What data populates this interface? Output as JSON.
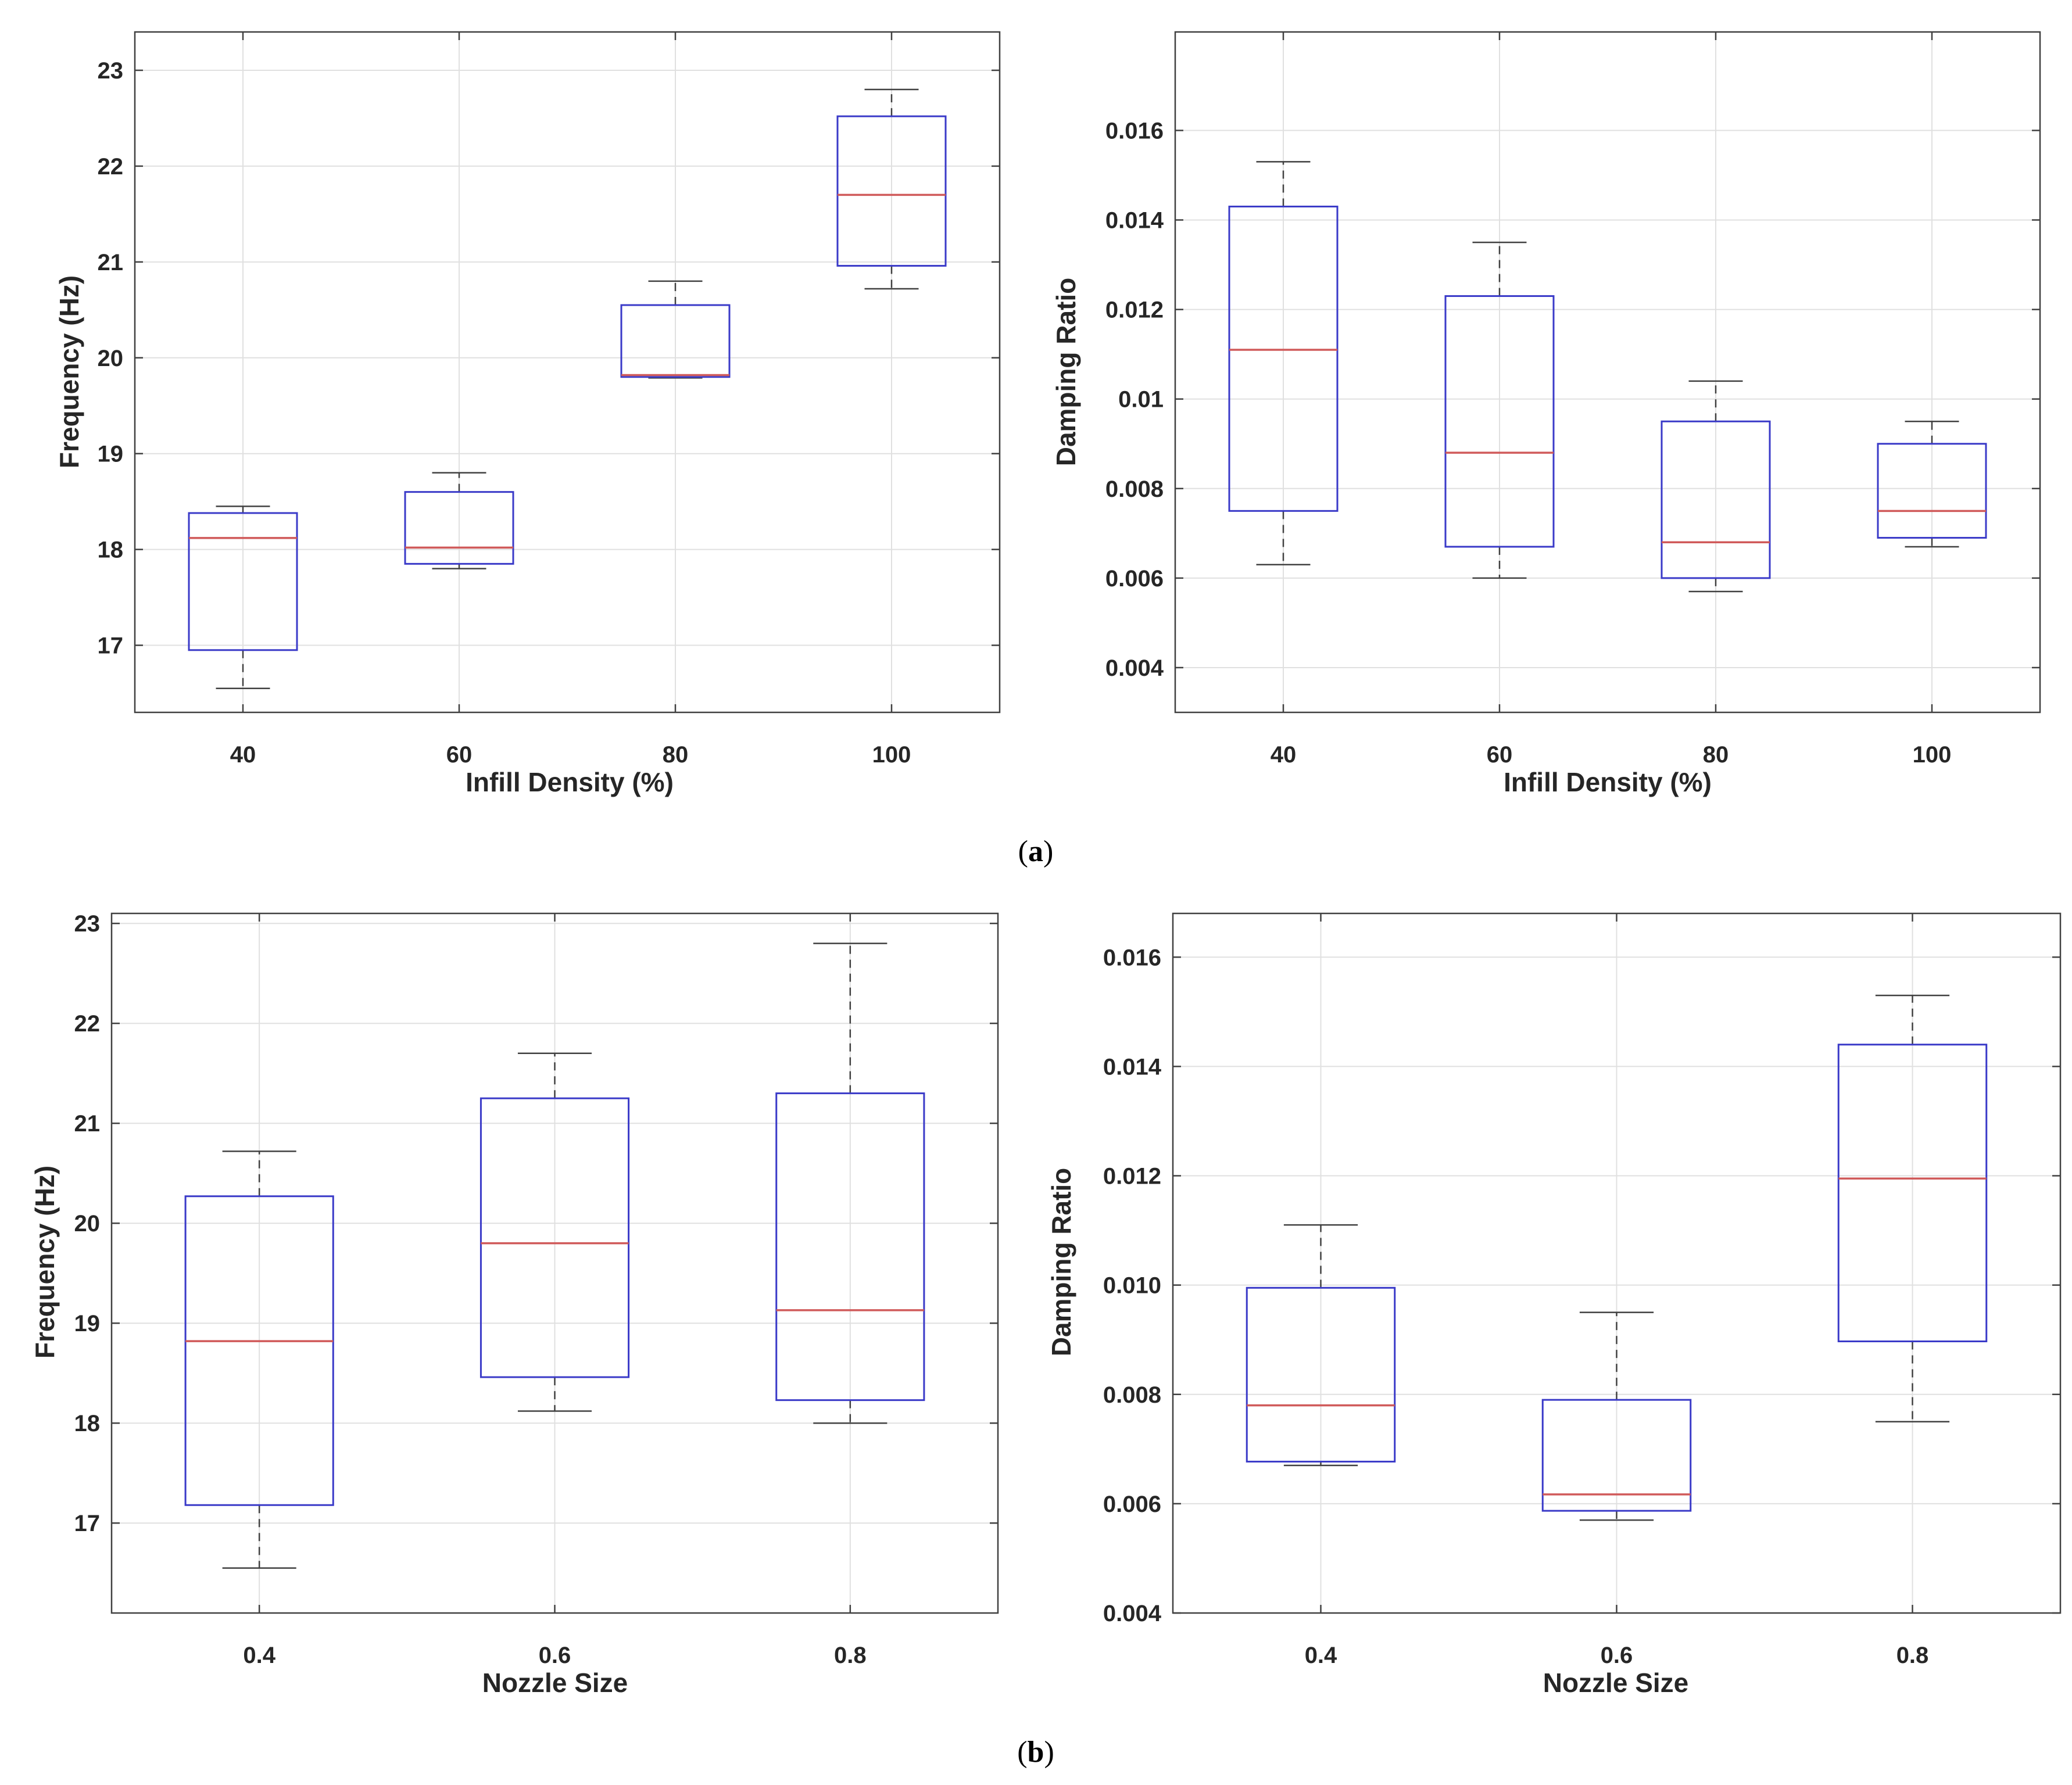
{
  "captions": {
    "a_open": "(",
    "a_letter": "a",
    "a_close": ")",
    "b_open": "(",
    "b_letter": "b",
    "b_close": ")"
  },
  "colors": {
    "box": "#3a3ac8",
    "median": "#d05a5a",
    "whisker": "#404040",
    "grid": "#e0e0e0",
    "axes": "#404040"
  },
  "chart_data": [
    {
      "type": "boxplot",
      "xlabel": "Infill Density (%)",
      "ylabel": "Frequency (Hz)",
      "categories": [
        "40",
        "60",
        "80",
        "100"
      ],
      "ylim": [
        16.3,
        23.4
      ],
      "yticks": [
        17,
        18,
        19,
        20,
        21,
        22,
        23
      ],
      "ytick_labels": [
        "17",
        "18",
        "19",
        "20",
        "21",
        "22",
        "23"
      ],
      "grid": true,
      "boxes": [
        {
          "category": "40",
          "min": 16.55,
          "q1": 16.95,
          "median": 18.12,
          "q3": 18.38,
          "max": 18.45
        },
        {
          "category": "60",
          "min": 17.8,
          "q1": 17.85,
          "median": 18.02,
          "q3": 18.6,
          "max": 18.8
        },
        {
          "category": "80",
          "min": 19.79,
          "q1": 19.8,
          "median": 19.82,
          "q3": 20.55,
          "max": 20.8
        },
        {
          "category": "100",
          "min": 20.72,
          "q1": 20.96,
          "median": 21.7,
          "q3": 22.52,
          "max": 22.8
        }
      ]
    },
    {
      "type": "boxplot",
      "xlabel": "Infill Density (%)",
      "ylabel": "Damping Ratio",
      "categories": [
        "40",
        "60",
        "80",
        "100"
      ],
      "ylim": [
        0.003,
        0.0182
      ],
      "yticks": [
        0.004,
        0.006,
        0.008,
        0.01,
        0.012,
        0.014,
        0.016
      ],
      "ytick_labels": [
        "0.004",
        "0.006",
        "0.008",
        "0.01",
        "0.012",
        "0.014",
        "0.016"
      ],
      "grid": true,
      "boxes": [
        {
          "category": "40",
          "min": 0.0063,
          "q1": 0.0075,
          "median": 0.0111,
          "q3": 0.0143,
          "max": 0.0153
        },
        {
          "category": "60",
          "min": 0.006,
          "q1": 0.0067,
          "median": 0.0088,
          "q3": 0.0123,
          "max": 0.0135
        },
        {
          "category": "80",
          "min": 0.0057,
          "q1": 0.006,
          "median": 0.0068,
          "q3": 0.0095,
          "max": 0.0104
        },
        {
          "category": "100",
          "min": 0.0067,
          "q1": 0.0069,
          "median": 0.0075,
          "q3": 0.009,
          "max": 0.0095
        }
      ]
    },
    {
      "type": "boxplot",
      "xlabel": "Nozzle Size",
      "ylabel": "Frequency (Hz)",
      "categories": [
        "0.4",
        "0.6",
        "0.8"
      ],
      "ylim": [
        16.1,
        23.1
      ],
      "yticks": [
        17,
        18,
        19,
        20,
        21,
        22,
        23
      ],
      "ytick_labels": [
        "17",
        "18",
        "19",
        "20",
        "21",
        "22",
        "23"
      ],
      "grid": true,
      "boxes": [
        {
          "category": "0.4",
          "min": 16.55,
          "q1": 17.18,
          "median": 18.82,
          "q3": 20.27,
          "max": 20.72
        },
        {
          "category": "0.6",
          "min": 18.12,
          "q1": 18.46,
          "median": 19.8,
          "q3": 21.25,
          "max": 21.7
        },
        {
          "category": "0.8",
          "min": 18.0,
          "q1": 18.23,
          "median": 19.13,
          "q3": 21.3,
          "max": 22.8
        }
      ]
    },
    {
      "type": "boxplot",
      "xlabel": "Nozzle Size",
      "ylabel": "Damping Ratio",
      "categories": [
        "0.4",
        "0.6",
        "0.8"
      ],
      "ylim": [
        0.004,
        0.0168
      ],
      "yticks": [
        0.004,
        0.006,
        0.008,
        0.01,
        0.012,
        0.014,
        0.016
      ],
      "ytick_labels": [
        "0.004",
        "0.006",
        "0.008",
        "0.010",
        "0.012",
        "0.014",
        "0.016"
      ],
      "grid": true,
      "boxes": [
        {
          "category": "0.4",
          "min": 0.0067,
          "q1": 0.00677,
          "median": 0.0078,
          "q3": 0.00995,
          "max": 0.0111
        },
        {
          "category": "0.6",
          "min": 0.0057,
          "q1": 0.00587,
          "median": 0.00617,
          "q3": 0.0079,
          "max": 0.0095
        },
        {
          "category": "0.8",
          "min": 0.0075,
          "q1": 0.00897,
          "median": 0.01195,
          "q3": 0.0144,
          "max": 0.0153
        }
      ]
    }
  ]
}
